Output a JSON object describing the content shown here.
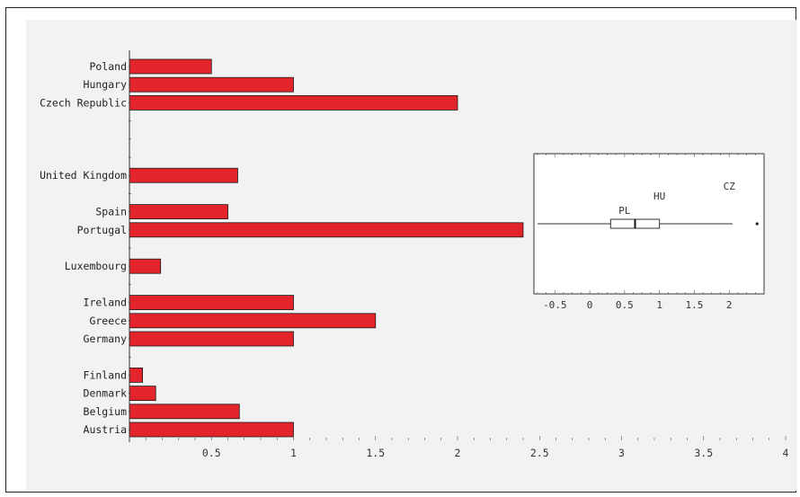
{
  "chart_data": [
    {
      "type": "bar",
      "orientation": "horizontal",
      "title": "",
      "xlabel": "",
      "ylabel": "",
      "xlim": [
        0,
        4
      ],
      "x_ticks": [
        "0.5",
        "1",
        "1.5",
        "2",
        "2.5",
        "3",
        "3.5",
        "4"
      ],
      "categories": [
        "Poland",
        "Hungary",
        "Czech Republic",
        "",
        "",
        "",
        "United Kingdom",
        "",
        "Spain",
        "Portugal",
        "",
        "Luxembourg",
        "",
        "Ireland",
        "Greece",
        "Germany",
        "",
        "Finland",
        "Denmark",
        "Belgium",
        "Austria"
      ],
      "values": [
        0.5,
        1.0,
        2.0,
        0,
        0,
        0,
        0.66,
        0,
        0.6,
        2.4,
        0,
        0.19,
        0,
        1.0,
        1.5,
        1.0,
        0,
        0.08,
        0.16,
        0.67,
        1.0
      ],
      "bar_color": "#e3242b",
      "grid": false
    },
    {
      "type": "boxplot",
      "title": "",
      "xlim": [
        -0.8,
        2.5
      ],
      "x_ticks": [
        "-0.5",
        "0",
        "0.5",
        "1",
        "1.5",
        "2"
      ],
      "box": {
        "whisker_low": -0.75,
        "q1": 0.3,
        "median": 0.65,
        "q3": 1.0,
        "whisker_high": 2.05,
        "outlier": 2.4
      },
      "annotations": [
        {
          "text": "PL",
          "x": 0.5
        },
        {
          "text": "HU",
          "x": 1.0
        },
        {
          "text": "CZ",
          "x": 2.0
        }
      ]
    }
  ]
}
